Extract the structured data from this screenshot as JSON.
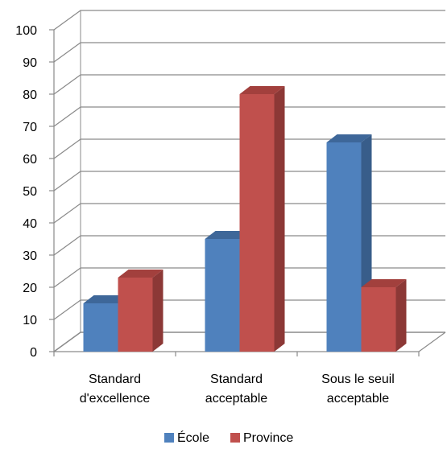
{
  "chart_data": {
    "type": "bar",
    "title": "",
    "xlabel": "",
    "ylabel": "",
    "ylim": [
      0,
      100
    ],
    "yticks": [
      "0",
      "10",
      "20",
      "30",
      "40",
      "50",
      "60",
      "70",
      "80",
      "90",
      "100"
    ],
    "categories": [
      [
        "Standard",
        "d'excellence"
      ],
      [
        "Standard",
        "acceptable"
      ],
      [
        "Sous le seuil",
        "acceptable"
      ]
    ],
    "series": [
      {
        "name": "École",
        "values": [
          15,
          35,
          65
        ],
        "color": "#4F81BD",
        "side_color": "#385D8A",
        "top_color": "#3E6799"
      },
      {
        "name": "Province",
        "values": [
          23,
          80,
          20
        ],
        "color": "#C0504D",
        "side_color": "#8C3836",
        "top_color": "#A2403D"
      }
    ],
    "grid": true,
    "legend_position": "bottom"
  }
}
